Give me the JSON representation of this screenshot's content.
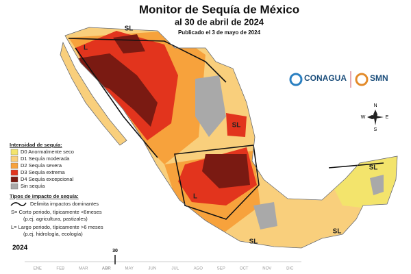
{
  "header": {
    "title": "Monitor de Sequía de México",
    "subtitle": "al 30 de abril de 2024",
    "published": "Publicado el 3 de mayo de 2024"
  },
  "logos": {
    "conagua": "CONAGUA",
    "smn": "SMN"
  },
  "compass": {
    "n": "N",
    "s": "S",
    "e": "E",
    "w": "W"
  },
  "legend": {
    "intensity_title": "Intensidad de sequía:",
    "items": [
      {
        "label": "D0 Anormalmente seco",
        "color": "#f3e46c"
      },
      {
        "label": "D1 Sequía moderada",
        "color": "#f9cf7c"
      },
      {
        "label": "D2 Sequía severa",
        "color": "#f7a23c"
      },
      {
        "label": "D3 Sequía extrema",
        "color": "#e2341d"
      },
      {
        "label": "D4 Sequía excepcional",
        "color": "#7a1a12"
      },
      {
        "label": "Sin sequía",
        "color": "#a9a9a9"
      }
    ],
    "impact_title": "Tipos de impacto de sequía:",
    "impact_items": [
      "Delimita impactos dominantes",
      "S= Corto periodo, típicamente <6meses",
      "(p.ej. agricultura, pastizales)",
      "L= Largo periodo, típicamente >6 meses",
      "(p.ej. hidrología, ecología)"
    ]
  },
  "map_labels": [
    "SL",
    "L",
    "SL",
    "SL",
    "L",
    "SL",
    "SL"
  ],
  "timeline": {
    "year": "2024",
    "months": [
      "ENE",
      "FEB",
      "MAR",
      "ABR",
      "MAY",
      "JUN",
      "JUL",
      "AGO",
      "SEP",
      "OCT",
      "NOV",
      "DIC"
    ],
    "current_day": "30",
    "current_month": "ABR"
  }
}
